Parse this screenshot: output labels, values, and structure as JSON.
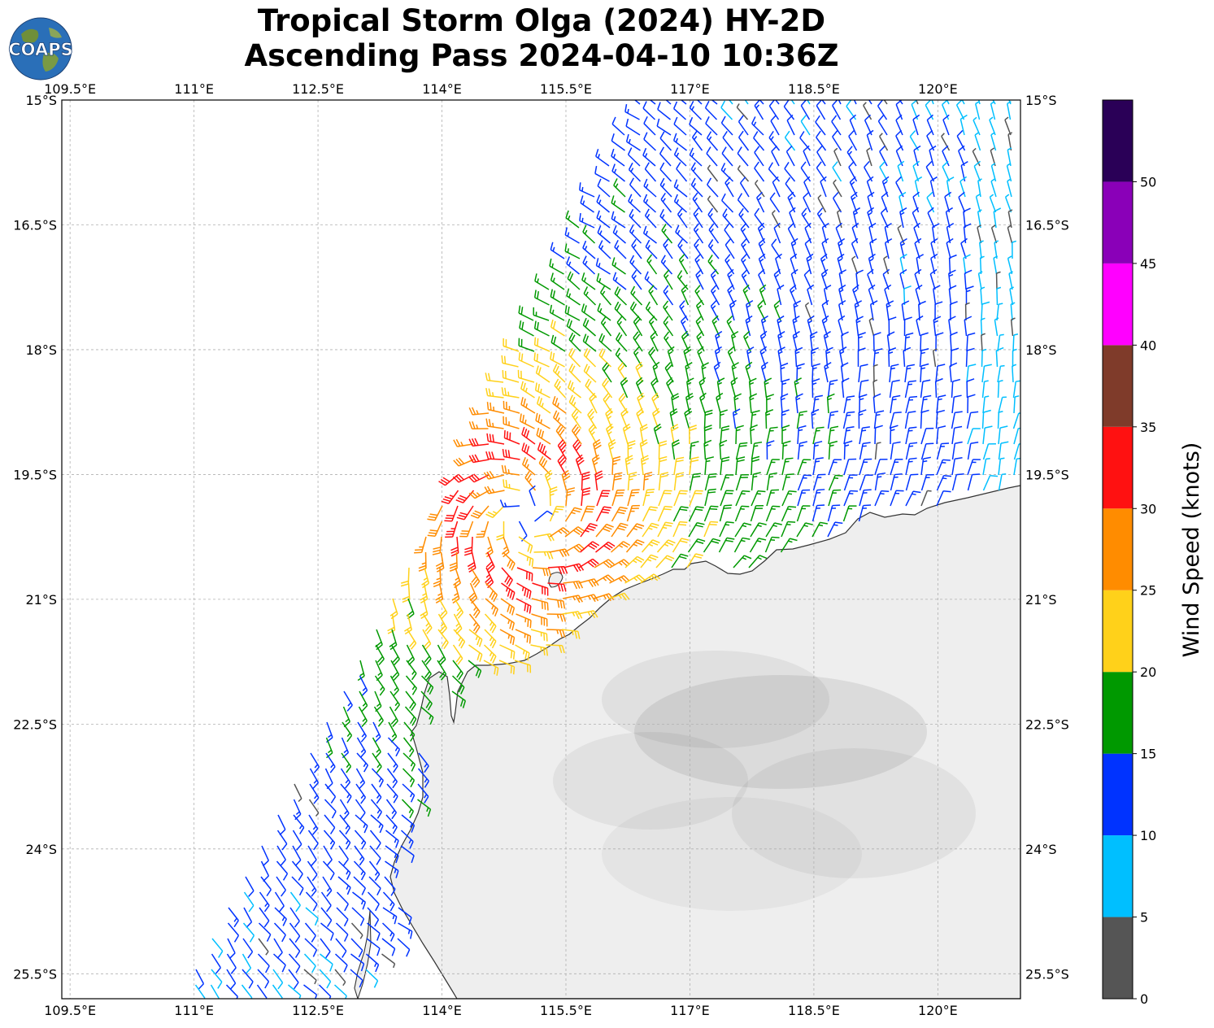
{
  "title": {
    "line1": "Tropical Storm Olga (2024) HY-2D",
    "line2": "Ascending Pass 2024-04-10 10:36Z"
  },
  "logo": {
    "text": "COAPS",
    "icon": "globe-logo-icon"
  },
  "map": {
    "lon_range": [
      109.4,
      121.0
    ],
    "lat_range": [
      -25.8,
      -15.0
    ],
    "lon_ticks": [
      109.5,
      111.0,
      112.5,
      114.0,
      115.5,
      117.0,
      118.5,
      120.0
    ],
    "lat_ticks": [
      -15.0,
      -16.5,
      -18.0,
      -19.5,
      -21.0,
      -22.5,
      -24.0,
      -25.5
    ],
    "lon_tick_labels": [
      "109.5°E",
      "111°E",
      "112.5°E",
      "114°E",
      "115.5°E",
      "117°E",
      "118.5°E",
      "120°E"
    ],
    "lat_tick_labels": [
      "15°S",
      "16.5°S",
      "18°S",
      "19.5°S",
      "21°S",
      "22.5°S",
      "24°S",
      "25.5°S"
    ],
    "grid": true,
    "barb_units": "knots",
    "land_color": "#eeeeee",
    "coast_color": "#333333"
  },
  "colorbar": {
    "label": "Wind Speed (knots)",
    "tick_labels": [
      "0",
      "5",
      "10",
      "15",
      "20",
      "25",
      "30",
      "35",
      "40",
      "45",
      "50"
    ],
    "bins": [
      {
        "min": 0,
        "max": 5,
        "color": "#555555"
      },
      {
        "min": 5,
        "max": 10,
        "color": "#00bfff"
      },
      {
        "min": 10,
        "max": 15,
        "color": "#0033ff"
      },
      {
        "min": 15,
        "max": 20,
        "color": "#009900"
      },
      {
        "min": 20,
        "max": 25,
        "color": "#ffd11a"
      },
      {
        "min": 25,
        "max": 30,
        "color": "#ff8c00"
      },
      {
        "min": 30,
        "max": 35,
        "color": "#ff1111"
      },
      {
        "min": 35,
        "max": 40,
        "color": "#7f3b2a"
      },
      {
        "min": 40,
        "max": 45,
        "color": "#ff00ff"
      },
      {
        "min": 45,
        "max": 50,
        "color": "#8a00b8"
      },
      {
        "min": 50,
        "max": 55,
        "color": "#2a0057"
      }
    ]
  },
  "storm": {
    "center_lon": 115.0,
    "center_lat": -20.0,
    "max_speed": 33
  }
}
